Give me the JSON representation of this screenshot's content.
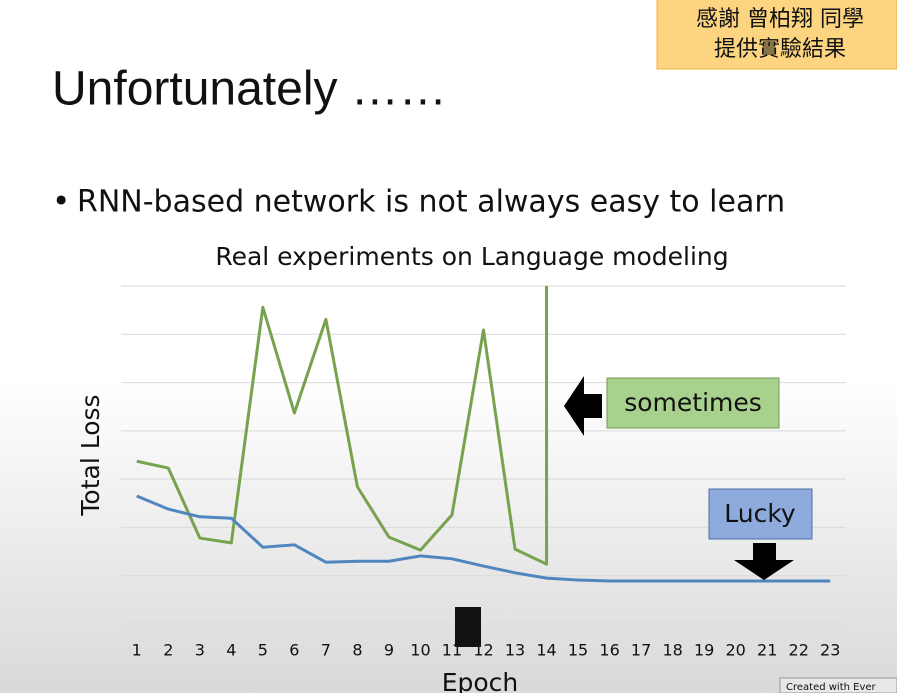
{
  "slide_title": "Unfortunately ……",
  "bullet": "RNN-based network is not always easy to learn",
  "note": [
    "感謝 曾柏翔 同學",
    "提供實驗結果"
  ],
  "watermark": "Created with Ever",
  "chart_data": {
    "type": "line",
    "title": "Real experiments on Language modeling",
    "x_label": "Epoch",
    "y_label": "Total Loss",
    "xlim": [
      0.5,
      23.5
    ],
    "xticks": [
      1,
      2,
      3,
      4,
      5,
      6,
      7,
      8,
      9,
      10,
      11,
      12,
      13,
      14,
      15,
      16,
      17,
      18,
      19,
      20,
      21,
      22,
      23
    ],
    "ylim": [
      0,
      7
    ],
    "yticks": [
      0,
      1,
      2,
      3,
      4,
      5,
      6,
      7
    ],
    "grid": true,
    "series": [
      {
        "name": "sometimes",
        "color": "#77a24e",
        "x": [
          1,
          2,
          3,
          4,
          5,
          6,
          7,
          8,
          9,
          10,
          11,
          12,
          13,
          14,
          14
        ],
        "values": [
          3.37,
          3.23,
          1.78,
          1.68,
          6.56,
          4.37,
          6.31,
          2.84,
          1.8,
          1.53,
          2.26,
          6.09,
          1.55,
          1.24,
          7
        ]
      },
      {
        "name": "Lucky",
        "color": "#4f86c0",
        "x": [
          1,
          2,
          3,
          4,
          5,
          6,
          7,
          8,
          9,
          10,
          11,
          12,
          13,
          14,
          15,
          16,
          17,
          18,
          19,
          20,
          21,
          22,
          23
        ],
        "values": [
          2.65,
          2.38,
          2.22,
          2.19,
          1.59,
          1.64,
          1.28,
          1.3,
          1.3,
          1.41,
          1.35,
          1.2,
          1.06,
          0.95,
          0.91,
          0.89,
          0.89,
          0.89,
          0.89,
          0.89,
          0.89,
          0.89,
          0.89
        ]
      }
    ]
  }
}
